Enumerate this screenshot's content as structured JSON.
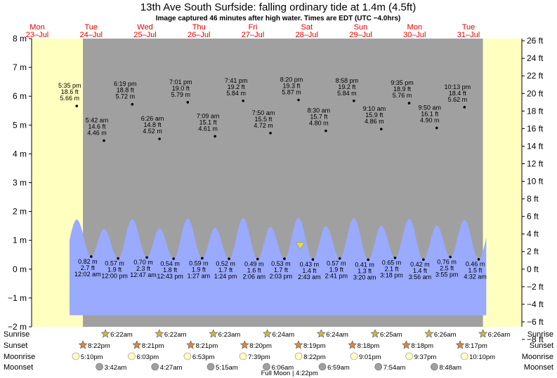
{
  "title": "13th Ave South Surfside: falling  ordinary tide at 1.4m (4.5ft)",
  "subtitle": "Image captured 46 minutes after high water. Times are EDT (UTC −4.0hrs)",
  "colors": {
    "day_bg": "#ffffc0",
    "night_bg": "#a0a0a0",
    "water": "#99aaff",
    "day_label": "#e00000",
    "sun_icon": "#c8b84c",
    "sunset_icon": "#d48848",
    "moonrise_icon": "#ffffc0",
    "moonset_icon": "#a0a0a0",
    "now_marker": "#e8e020"
  },
  "days": [
    {
      "name": "Mon",
      "date": "23–Jul"
    },
    {
      "name": "Tue",
      "date": "24–Jul"
    },
    {
      "name": "Wed",
      "date": "25–Jul"
    },
    {
      "name": "Thu",
      "date": "26–Jul"
    },
    {
      "name": "Fri",
      "date": "27–Jul"
    },
    {
      "name": "Sat",
      "date": "28–Jul"
    },
    {
      "name": "Sun",
      "date": "29–Jul"
    },
    {
      "name": "Mon",
      "date": "30–Jul"
    },
    {
      "name": "Tue",
      "date": "31–Jul"
    }
  ],
  "row_labels": [
    "Sunrise",
    "Sunset",
    "Moonrise",
    "Moonset"
  ],
  "chart_data": {
    "type": "area",
    "x_unit": "days since start of 23-Jul (local time)",
    "y_left_unit": "m",
    "y_right_unit": "ft",
    "ylim": [
      -2,
      8
    ],
    "y_left_ticks": [
      {
        "v": -2,
        "label": "−2 m"
      },
      {
        "v": -1,
        "label": "−1 m"
      },
      {
        "v": 0,
        "label": "0 m"
      },
      {
        "v": 1,
        "label": "1 m"
      },
      {
        "v": 2,
        "label": "2 m"
      },
      {
        "v": 3,
        "label": "3 m"
      },
      {
        "v": 4,
        "label": "4 m"
      },
      {
        "v": 5,
        "label": "5 m"
      },
      {
        "v": 6,
        "label": "6 m"
      },
      {
        "v": 7,
        "label": "7 m"
      },
      {
        "v": 8,
        "label": "8 m"
      }
    ],
    "y_right_ticks_ft": [
      {
        "v": -8,
        "label": "−8 ft"
      },
      {
        "v": -6,
        "label": "−6 ft"
      },
      {
        "v": -4,
        "label": "−4 ft"
      },
      {
        "v": -2,
        "label": "−2 ft"
      },
      {
        "v": 0,
        "label": "0 ft"
      },
      {
        "v": 2,
        "label": "2 ft"
      },
      {
        "v": 4,
        "label": "4 ft"
      },
      {
        "v": 6,
        "label": "6 ft"
      },
      {
        "v": 8,
        "label": "8 ft"
      },
      {
        "v": 10,
        "label": "10 ft"
      },
      {
        "v": 12,
        "label": "12 ft"
      },
      {
        "v": 14,
        "label": "14 ft"
      },
      {
        "v": 16,
        "label": "16 ft"
      },
      {
        "v": 18,
        "label": "18 ft"
      },
      {
        "v": 20,
        "label": "20 ft"
      },
      {
        "v": 22,
        "label": "22 ft"
      },
      {
        "v": 24,
        "label": "24 ft"
      },
      {
        "v": 26,
        "label": "26 ft"
      }
    ],
    "tides": [
      {
        "t": 0.733,
        "type": "high",
        "label_m": "5.66 m",
        "label_ft": "18.6 ft",
        "time": "5:35 pm",
        "height_m": 5.66
      },
      {
        "t": 1.001,
        "type": "low",
        "label_m": "0.82 m",
        "label_ft": "2.7 ft",
        "time": "12:02 am",
        "height_m": 0.82
      },
      {
        "t": 1.238,
        "type": "high",
        "label_m": "4.46 m",
        "label_ft": "14.6 ft",
        "time": "5:42 am",
        "height_m": 4.46
      },
      {
        "t": 1.5,
        "type": "low",
        "label_m": "0.57 m",
        "label_ft": "1.9 ft",
        "time": "12:00 pm",
        "height_m": 0.57
      },
      {
        "t": 1.763,
        "type": "high",
        "label_m": "5.72 m",
        "label_ft": "18.8 ft",
        "time": "6:19 pm",
        "height_m": 5.72
      },
      {
        "t": 2.033,
        "type": "low",
        "label_m": "0.70 m",
        "label_ft": "2.3 ft",
        "time": "12:47 am",
        "height_m": 0.7
      },
      {
        "t": 2.268,
        "type": "high",
        "label_m": "4.52 m",
        "label_ft": "14.8 ft",
        "time": "6:26 am",
        "height_m": 4.52
      },
      {
        "t": 2.53,
        "type": "low",
        "label_m": "0.54 m",
        "label_ft": "1.8 ft",
        "time": "12:43 pm",
        "height_m": 0.54
      },
      {
        "t": 2.792,
        "type": "high",
        "label_m": "5.79 m",
        "label_ft": "19.0 ft",
        "time": "7:01 pm",
        "height_m": 5.79
      },
      {
        "t": 3.06,
        "type": "low",
        "label_m": "0.59 m",
        "label_ft": "1.9 ft",
        "time": "1:27 am",
        "height_m": 0.59
      },
      {
        "t": 3.298,
        "type": "high",
        "label_m": "4.61 m",
        "label_ft": "15.1 ft",
        "time": "7:09 am",
        "height_m": 4.61
      },
      {
        "t": 3.558,
        "type": "low",
        "label_m": "0.52 m",
        "label_ft": "1.7 ft",
        "time": "1:24 pm",
        "height_m": 0.52
      },
      {
        "t": 3.82,
        "type": "high",
        "label_m": "5.84 m",
        "label_ft": "19.2 ft",
        "time": "7:41 pm",
        "height_m": 5.84
      },
      {
        "t": 4.088,
        "type": "low",
        "label_m": "0.49 m",
        "label_ft": "1.6 ft",
        "time": "2:06 am",
        "height_m": 0.49
      },
      {
        "t": 4.326,
        "type": "high",
        "label_m": "4.72 m",
        "label_ft": "15.5 ft",
        "time": "7:50 am",
        "height_m": 4.72
      },
      {
        "t": 4.585,
        "type": "low",
        "label_m": "0.53 m",
        "label_ft": "1.7 ft",
        "time": "2:03 pm",
        "height_m": 0.53
      },
      {
        "t": 4.847,
        "type": "high",
        "label_m": "5.87 m",
        "label_ft": "19.3 ft",
        "time": "8:20 pm",
        "height_m": 5.87
      },
      {
        "t": 5.113,
        "type": "low",
        "label_m": "0.43 m",
        "label_ft": "1.4 ft",
        "time": "2:43 am",
        "height_m": 0.43
      },
      {
        "t": 5.354,
        "type": "high",
        "label_m": "4.80 m",
        "label_ft": "15.7 ft",
        "time": "8:30 am",
        "height_m": 4.8
      },
      {
        "t": 5.612,
        "type": "low",
        "label_m": "0.57 m",
        "label_ft": "1.9 ft",
        "time": "2:41 pm",
        "height_m": 0.57
      },
      {
        "t": 5.874,
        "type": "high",
        "label_m": "5.84 m",
        "label_ft": "19.2 ft",
        "time": "8:58 pm",
        "height_m": 5.84
      },
      {
        "t": 6.139,
        "type": "low",
        "label_m": "0.41 m",
        "label_ft": "1.3 ft",
        "time": "3:20 am",
        "height_m": 0.41
      },
      {
        "t": 6.382,
        "type": "high",
        "label_m": "4.86 m",
        "label_ft": "15.9 ft",
        "time": "9:10 am",
        "height_m": 4.86
      },
      {
        "t": 6.638,
        "type": "low",
        "label_m": "0.65 m",
        "label_ft": "2.1 ft",
        "time": "3:18 pm",
        "height_m": 0.65
      },
      {
        "t": 6.899,
        "type": "high",
        "label_m": "5.76 m",
        "label_ft": "18.9 ft",
        "time": "9:35 pm",
        "height_m": 5.76
      },
      {
        "t": 7.164,
        "type": "low",
        "label_m": "0.42 m",
        "label_ft": "1.4 ft",
        "time": "3:56 am",
        "height_m": 0.42
      },
      {
        "t": 7.41,
        "type": "high",
        "label_m": "4.90 m",
        "label_ft": "16.1 ft",
        "time": "9:50 am",
        "height_m": 4.9
      },
      {
        "t": 7.663,
        "type": "low",
        "label_m": "0.76 m",
        "label_ft": "2.5 ft",
        "time": "3:55 pm",
        "height_m": 0.76
      },
      {
        "t": 7.926,
        "type": "high",
        "label_m": "5.62 m",
        "label_ft": "18.4 ft",
        "time": "10:13 pm",
        "height_m": 5.62
      },
      {
        "t": 8.189,
        "type": "low",
        "label_m": "0.46 m",
        "label_ft": "1.5 ft",
        "time": "4:32 am",
        "height_m": 0.46
      }
    ],
    "now_marker": {
      "label": "current tide 1.4m (4.5ft)",
      "height_m": 1.4
    },
    "sunrise": [
      "6:22am",
      "6:22am",
      "6:23am",
      "6:24am",
      "6:24am",
      "6:25am",
      "6:26am",
      "6:26am"
    ],
    "sunset": [
      "8:22pm",
      "8:21pm",
      "8:21pm",
      "8:20pm",
      "8:19pm",
      "8:18pm",
      "8:18pm",
      "8:17pm"
    ],
    "moonrise": [
      "5:10pm",
      "6:03pm",
      "6:53pm",
      "7:39pm",
      "8:22pm",
      "9:01pm",
      "9:37pm",
      "10:10pm"
    ],
    "moonset": [
      "3:42am",
      "4:27am",
      "5:15am",
      "6:06am",
      "6:59am",
      "7:54am",
      "8:48am"
    ],
    "full_moon": "Full Moon | 4:22pm"
  }
}
